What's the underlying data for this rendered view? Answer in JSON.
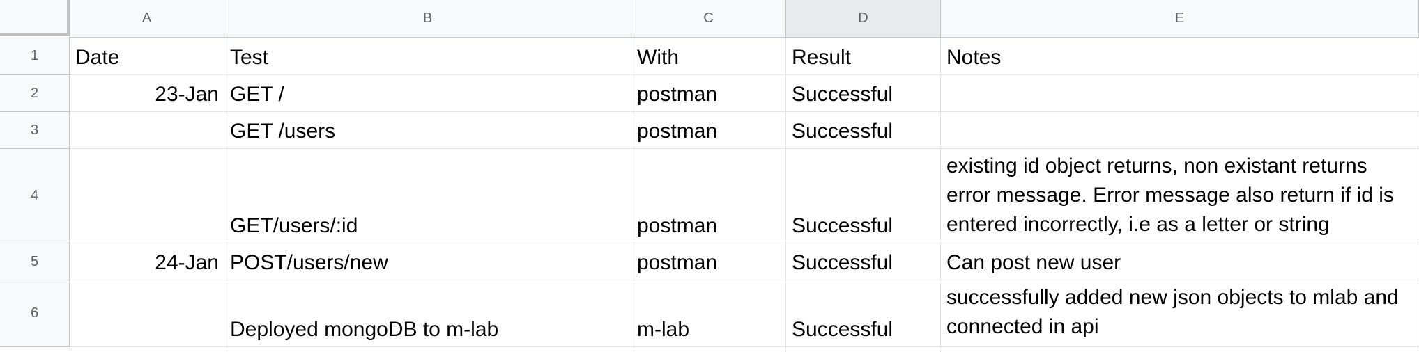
{
  "columns": [
    "A",
    "B",
    "C",
    "D",
    "E"
  ],
  "rows": [
    "1",
    "2",
    "3",
    "4",
    "5",
    "6"
  ],
  "cells": {
    "r1": {
      "a": "Date",
      "b": "Test",
      "c": "With",
      "d": "Result",
      "e": "Notes"
    },
    "r2": {
      "a": "23-Jan",
      "b": "GET /",
      "c": "postman",
      "d": "Successful",
      "e": ""
    },
    "r3": {
      "a": "",
      "b": "GET /users",
      "c": "postman",
      "d": "Successful",
      "e": ""
    },
    "r4": {
      "a": "",
      "b": "GET/users/:id",
      "c": "postman",
      "d": "Successful",
      "e": "existing id object returns, non existant returns error message. Error message also return if id is entered incorrectly, i.e as a letter or string"
    },
    "r5": {
      "a": "24-Jan",
      "b": "POST/users/new",
      "c": "postman",
      "d": "Successful",
      "e": "Can post new user"
    },
    "r6": {
      "a": "",
      "b": "Deployed mongoDB to m-lab",
      "c": "m-lab",
      "d": "Successful",
      "e": "successfully added new json objects to mlab and connected in api"
    }
  },
  "selected_column": "D"
}
